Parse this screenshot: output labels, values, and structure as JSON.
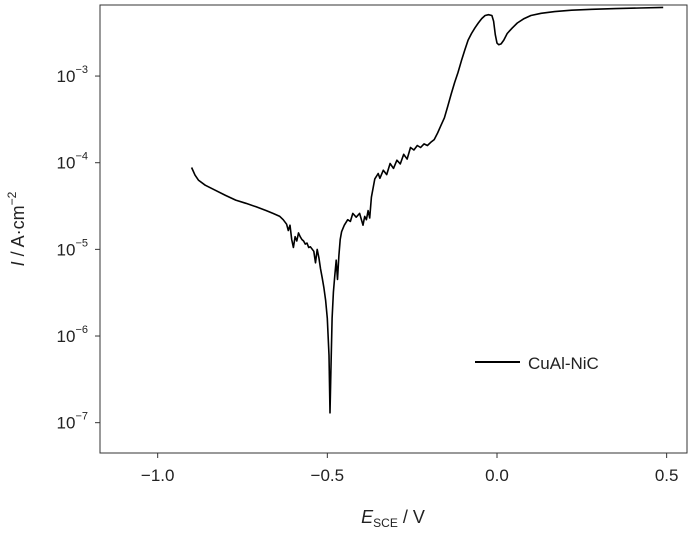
{
  "chart_data": {
    "type": "line",
    "xlabel": {
      "var": "E",
      "sub": "SCE",
      "unit": " / V"
    },
    "ylabel": {
      "var": "I",
      "unit": " / A·cm",
      "exp": "−2"
    },
    "xlim": [
      -1.17,
      0.56
    ],
    "ylim_log10": [
      -7.35,
      -2.18
    ],
    "y_scale": "log",
    "x_ticks": [
      {
        "value": -1.0,
        "label": "−1.0"
      },
      {
        "value": -0.5,
        "label": "−0.5"
      },
      {
        "value": 0.0,
        "label": "0.0"
      },
      {
        "value": 0.5,
        "label": "0.5"
      }
    ],
    "y_ticks": [
      {
        "value": -7,
        "base": "10",
        "exp": "−7"
      },
      {
        "value": -6,
        "base": "10",
        "exp": "−6"
      },
      {
        "value": -5,
        "base": "10",
        "exp": "−5"
      },
      {
        "value": -4,
        "base": "10",
        "exp": "−4"
      },
      {
        "value": -3,
        "base": "10",
        "exp": "−3"
      }
    ],
    "legend_position": "lower-right",
    "series": [
      {
        "name": "CuAl-NiC",
        "color": "#000000",
        "points": [
          [
            -0.9,
            8.8e-05
          ],
          [
            -0.89,
            7.2e-05
          ],
          [
            -0.88,
            6.3e-05
          ],
          [
            -0.86,
            5.5e-05
          ],
          [
            -0.83,
            4.8e-05
          ],
          [
            -0.8,
            4.2e-05
          ],
          [
            -0.77,
            3.7e-05
          ],
          [
            -0.74,
            3.4e-05
          ],
          [
            -0.71,
            3.1e-05
          ],
          [
            -0.68,
            2.8e-05
          ],
          [
            -0.66,
            2.6e-05
          ],
          [
            -0.64,
            2.4e-05
          ],
          [
            -0.63,
            2.2e-05
          ],
          [
            -0.62,
            1.95e-05
          ],
          [
            -0.615,
            1.65e-05
          ],
          [
            -0.61,
            1.9e-05
          ],
          [
            -0.605,
            1.3e-05
          ],
          [
            -0.6,
            1.05e-05
          ],
          [
            -0.595,
            1.4e-05
          ],
          [
            -0.59,
            1.25e-05
          ],
          [
            -0.585,
            1.55e-05
          ],
          [
            -0.58,
            1.4e-05
          ],
          [
            -0.575,
            1.3e-05
          ],
          [
            -0.57,
            1.25e-05
          ],
          [
            -0.565,
            1.15e-05
          ],
          [
            -0.56,
            1.18e-05
          ],
          [
            -0.555,
            1.05e-05
          ],
          [
            -0.55,
            1.07e-05
          ],
          [
            -0.54,
            9.5e-06
          ],
          [
            -0.535,
            7e-06
          ],
          [
            -0.53,
            1e-05
          ],
          [
            -0.525,
            8e-06
          ],
          [
            -0.52,
            6e-06
          ],
          [
            -0.515,
            4.7e-06
          ],
          [
            -0.51,
            3.6e-06
          ],
          [
            -0.505,
            2.6e-06
          ],
          [
            -0.5,
            1.6e-06
          ],
          [
            -0.495,
            6e-07
          ],
          [
            -0.492,
            1.3e-07
          ],
          [
            -0.489,
            5e-07
          ],
          [
            -0.486,
            1.6e-06
          ],
          [
            -0.482,
            3.2e-06
          ],
          [
            -0.478,
            5e-06
          ],
          [
            -0.474,
            7.5e-06
          ],
          [
            -0.47,
            4.5e-06
          ],
          [
            -0.466,
            8.5e-06
          ],
          [
            -0.462,
            1.3e-05
          ],
          [
            -0.458,
            1.6e-05
          ],
          [
            -0.45,
            1.9e-05
          ],
          [
            -0.44,
            2.2e-05
          ],
          [
            -0.432,
            2.1e-05
          ],
          [
            -0.425,
            2.6e-05
          ],
          [
            -0.415,
            2.35e-05
          ],
          [
            -0.405,
            2.6e-05
          ],
          [
            -0.395,
            1.9e-05
          ],
          [
            -0.39,
            2.4e-05
          ],
          [
            -0.385,
            2.2e-05
          ],
          [
            -0.38,
            2.8e-05
          ],
          [
            -0.375,
            2.3e-05
          ],
          [
            -0.37,
            4e-05
          ],
          [
            -0.36,
            6.5e-05
          ],
          [
            -0.35,
            7.5e-05
          ],
          [
            -0.345,
            6.6e-05
          ],
          [
            -0.335,
            8.2e-05
          ],
          [
            -0.325,
            7.3e-05
          ],
          [
            -0.315,
            9.8e-05
          ],
          [
            -0.305,
            8.6e-05
          ],
          [
            -0.295,
            0.000107
          ],
          [
            -0.285,
            9.7e-05
          ],
          [
            -0.275,
            0.000125
          ],
          [
            -0.265,
            0.00011
          ],
          [
            -0.255,
            0.00015
          ],
          [
            -0.245,
            0.00014
          ],
          [
            -0.235,
            0.000158
          ],
          [
            -0.225,
            0.00015
          ],
          [
            -0.215,
            0.000165
          ],
          [
            -0.205,
            0.000158
          ],
          [
            -0.195,
            0.000172
          ],
          [
            -0.185,
            0.000185
          ],
          [
            -0.175,
            0.00022
          ],
          [
            -0.165,
            0.00027
          ],
          [
            -0.155,
            0.00033
          ],
          [
            -0.145,
            0.00045
          ],
          [
            -0.135,
            0.00062
          ],
          [
            -0.125,
            0.00084
          ],
          [
            -0.115,
            0.0011
          ],
          [
            -0.105,
            0.0015
          ],
          [
            -0.095,
            0.002
          ],
          [
            -0.085,
            0.0026
          ],
          [
            -0.075,
            0.0031
          ],
          [
            -0.065,
            0.0036
          ],
          [
            -0.055,
            0.0041
          ],
          [
            -0.045,
            0.0046
          ],
          [
            -0.035,
            0.005
          ],
          [
            -0.025,
            0.0051
          ],
          [
            -0.015,
            0.005
          ],
          [
            -0.01,
            0.0043
          ],
          [
            -0.005,
            0.003
          ],
          [
            0.0,
            0.0024
          ],
          [
            0.005,
            0.0023
          ],
          [
            0.012,
            0.00235
          ],
          [
            0.02,
            0.0026
          ],
          [
            0.03,
            0.0031
          ],
          [
            0.045,
            0.0036
          ],
          [
            0.06,
            0.0041
          ],
          [
            0.08,
            0.0046
          ],
          [
            0.1,
            0.005
          ],
          [
            0.13,
            0.0053
          ],
          [
            0.17,
            0.00555
          ],
          [
            0.22,
            0.00575
          ],
          [
            0.28,
            0.0059
          ],
          [
            0.35,
            0.006
          ],
          [
            0.42,
            0.0061
          ],
          [
            0.49,
            0.0062
          ]
        ]
      }
    ]
  }
}
